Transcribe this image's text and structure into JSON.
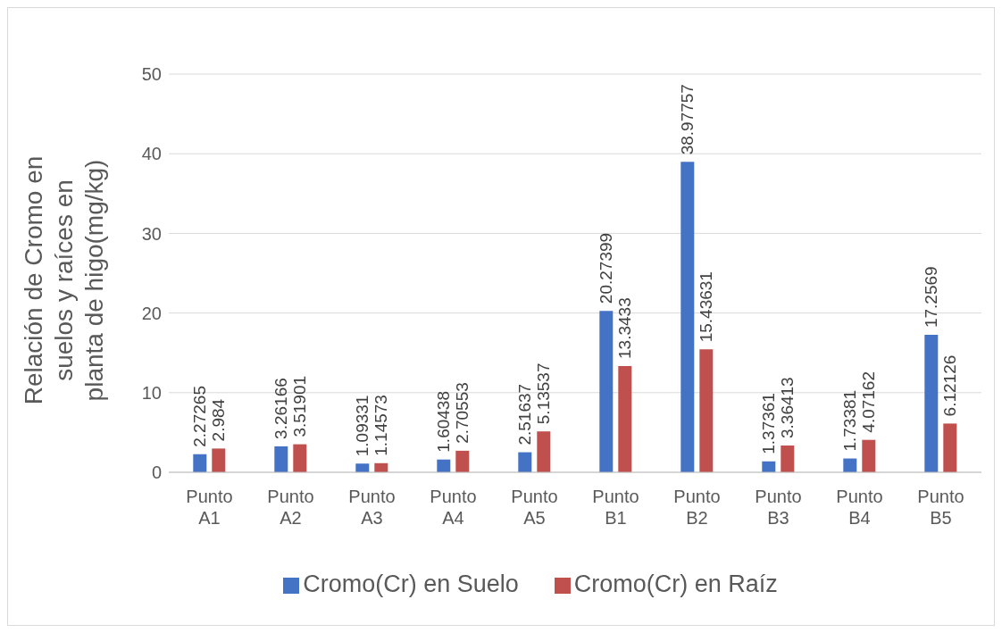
{
  "chart_data": {
    "type": "bar",
    "ylabel": "Relación de Cromo en\nsuelos y raíces en\nplanta de higo(mg/kg)",
    "categories": [
      "Punto A1",
      "Punto A2",
      "Punto A3",
      "Punto A4",
      "Punto A5",
      "Punto B1",
      "Punto B2",
      "Punto B3",
      "Punto B4",
      "Punto B5"
    ],
    "series": [
      {
        "name": "Cromo(Cr) en Suelo",
        "color": "#4472c4",
        "values": [
          2.27265,
          3.26166,
          1.09331,
          1.60438,
          2.51637,
          20.27399,
          38.97757,
          1.37361,
          1.73381,
          17.2569
        ]
      },
      {
        "name": "Cromo(Cr) en Raíz",
        "color": "#c0504d",
        "values": [
          2.984,
          3.51901,
          1.14573,
          2.70553,
          5.13537,
          13.3433,
          15.43631,
          3.36413,
          4.07162,
          6.12126
        ]
      }
    ],
    "ylim": [
      0,
      50
    ],
    "yticks": [
      0,
      10,
      20,
      30,
      40,
      50
    ],
    "grid": "y",
    "legend": "bottom",
    "data_labels": true
  }
}
